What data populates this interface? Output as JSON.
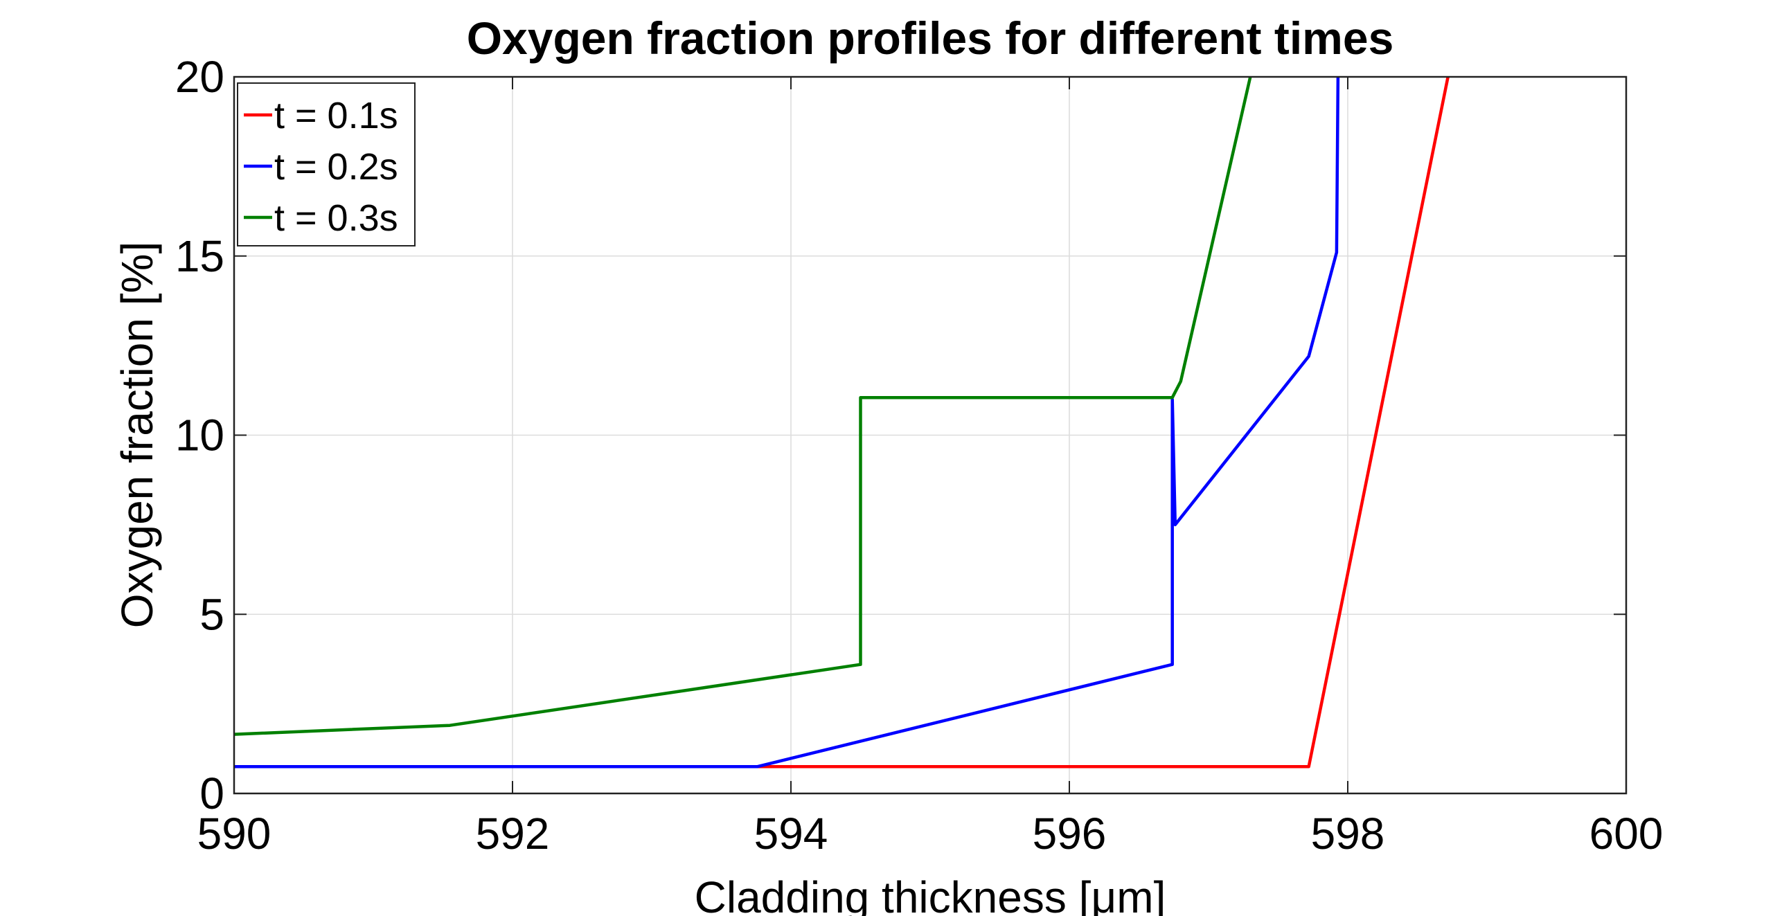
{
  "chart_data": {
    "type": "line",
    "title": "Oxygen fraction profiles for different times",
    "xlabel": "Cladding thickness [μm]",
    "ylabel": "Oxygen fraction [%]",
    "xlim": [
      590,
      600
    ],
    "ylim": [
      0,
      20
    ],
    "xticks": [
      590,
      592,
      594,
      596,
      598,
      600
    ],
    "yticks": [
      0,
      5,
      10,
      15,
      20
    ],
    "xtick_labels": [
      "590",
      "592",
      "594",
      "596",
      "598",
      "600"
    ],
    "ytick_labels": [
      "0",
      "5",
      "10",
      "15",
      "20"
    ],
    "grid": true,
    "legend_position": "top-left",
    "series": [
      {
        "name": "t = 0.1s",
        "color": "#ff0000",
        "x": [
          590,
          597.72,
          598.72
        ],
        "y": [
          0.75,
          0.75,
          20
        ]
      },
      {
        "name": "t = 0.2s",
        "color": "#0000ff",
        "x": [
          590,
          593.76,
          596.74,
          596.74,
          596.76,
          597.72,
          597.92,
          597.93
        ],
        "y": [
          0.75,
          0.75,
          3.6,
          11.0,
          7.5,
          12.2,
          15.1,
          20
        ]
      },
      {
        "name": "t = 0.3s",
        "color": "#008000",
        "x": [
          590,
          591.55,
          594.5,
          594.5,
          596.74,
          596.8,
          597.3
        ],
        "y": [
          1.65,
          1.9,
          3.6,
          11.05,
          11.05,
          11.5,
          20
        ]
      }
    ]
  }
}
